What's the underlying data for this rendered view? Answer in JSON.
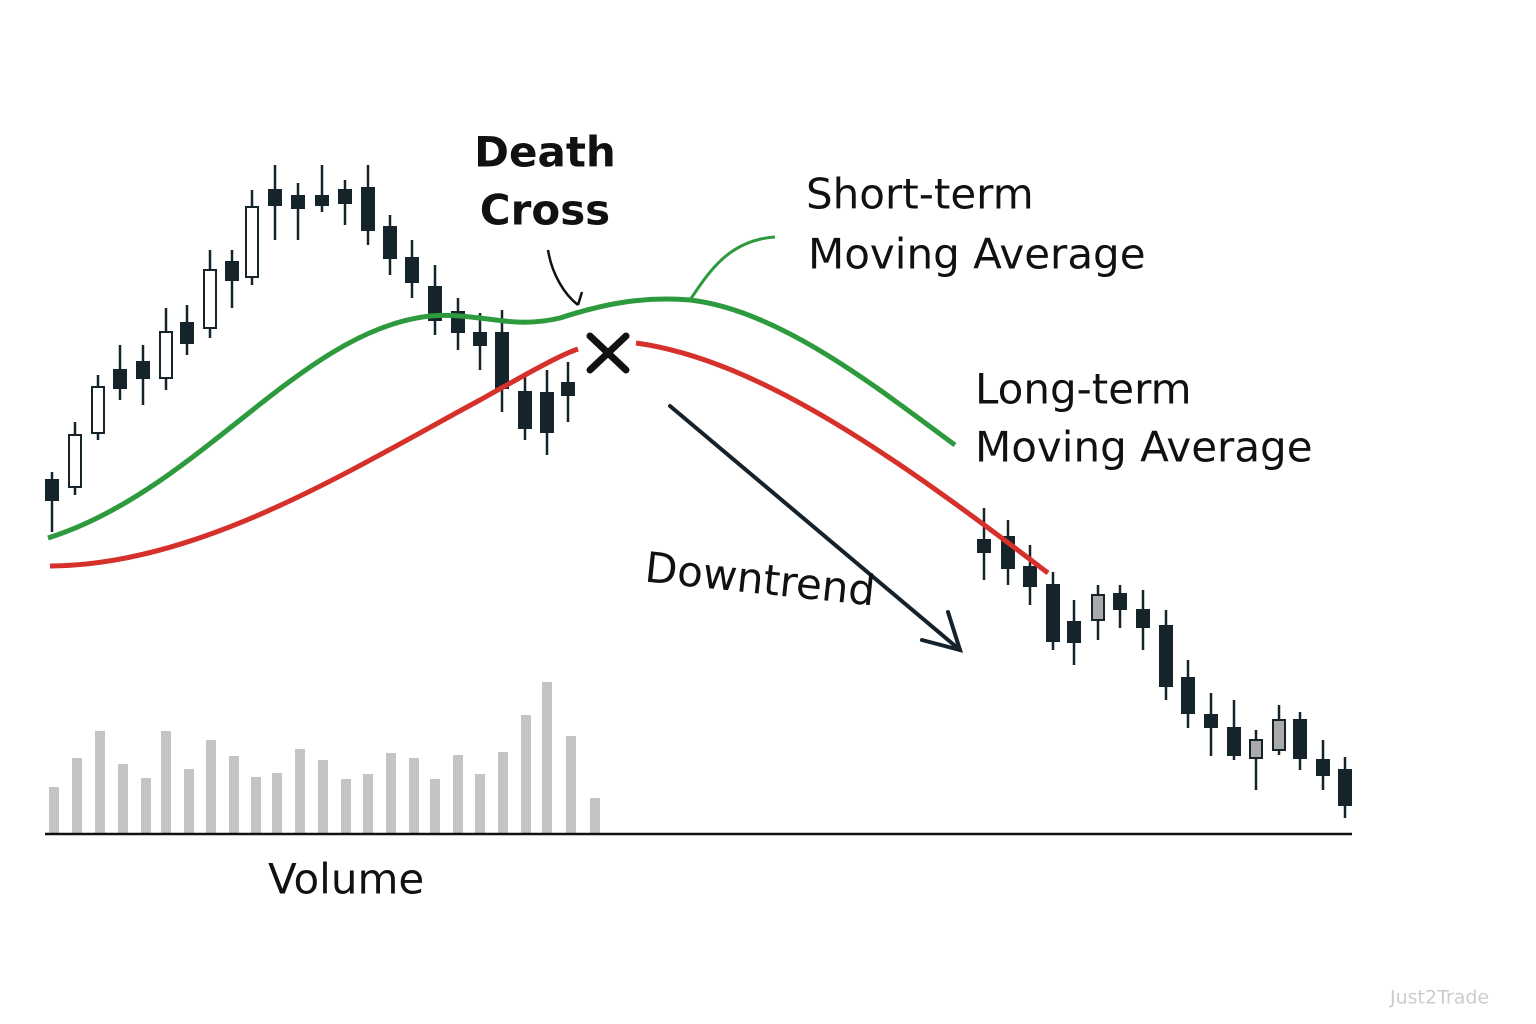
{
  "title": [
    "Death",
    "Cross"
  ],
  "short_term": [
    "Short-term",
    "Moving Average"
  ],
  "long_term": [
    "Long-term",
    "Moving Average"
  ],
  "downtrend": "Downtrend",
  "volume": "Volume",
  "watermark": "Just2Trade"
}
